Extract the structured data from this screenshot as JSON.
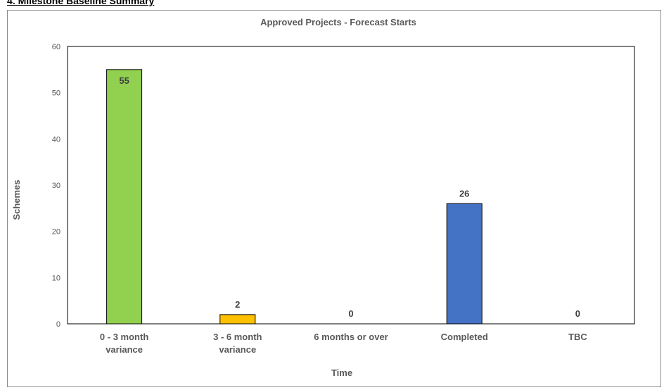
{
  "page": {
    "heading": "4. Milestone Baseline Summary"
  },
  "chart_data": {
    "type": "bar",
    "title": "Approved Projects - Forecast Starts",
    "xlabel": "Time",
    "ylabel": "Schemes",
    "categories": [
      [
        "0 - 3 month",
        "variance"
      ],
      [
        "3 - 6 month",
        "variance"
      ],
      [
        "6 months or over"
      ],
      [
        "Completed"
      ],
      [
        "TBC"
      ]
    ],
    "values": [
      55,
      2,
      0,
      26,
      0
    ],
    "colors": [
      "#92d050",
      "#ffc000",
      "#92d050",
      "#4472c4",
      "#92d050"
    ],
    "ylim": [
      0,
      60
    ],
    "yticks": [
      0,
      10,
      20,
      30,
      40,
      50,
      60
    ],
    "grid": false,
    "legend": "none"
  }
}
